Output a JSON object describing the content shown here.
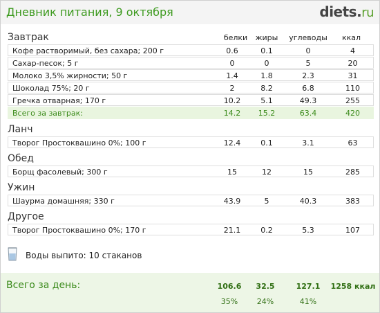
{
  "header": {
    "title": "Дневник питания, 9 октября",
    "logo_main": "diets",
    "logo_dot": ".",
    "logo_tld": "ru"
  },
  "columns": {
    "protein": "белки",
    "fat": "жиры",
    "carbs": "углеводы",
    "kcal": "ккал"
  },
  "sections": [
    {
      "title": "Завтрак",
      "items": [
        {
          "name": "Кофе растворимый, без сахара; 200 г",
          "protein": "0.6",
          "fat": "0.1",
          "carbs": "0",
          "kcal": "4"
        },
        {
          "name": "Сахар-песок; 5 г",
          "protein": "0",
          "fat": "0",
          "carbs": "5",
          "kcal": "20"
        },
        {
          "name": "Молоко 3,5% жирности; 50 г",
          "protein": "1.4",
          "fat": "1.8",
          "carbs": "2.3",
          "kcal": "31"
        },
        {
          "name": "Шоколад 75%; 20 г",
          "protein": "2",
          "fat": "8.2",
          "carbs": "6.8",
          "kcal": "110"
        },
        {
          "name": "Гречка отварная; 170 г",
          "protein": "10.2",
          "fat": "5.1",
          "carbs": "49.3",
          "kcal": "255"
        }
      ],
      "total": {
        "name": "Всего за завтрак:",
        "protein": "14.2",
        "fat": "15.2",
        "carbs": "63.4",
        "kcal": "420"
      }
    },
    {
      "title": "Ланч",
      "items": [
        {
          "name": "Творог Простоквашино 0%; 100 г",
          "protein": "12.4",
          "fat": "0.1",
          "carbs": "3.1",
          "kcal": "63"
        }
      ]
    },
    {
      "title": "Обед",
      "items": [
        {
          "name": "Борщ фасолевый; 300 г",
          "protein": "15",
          "fat": "12",
          "carbs": "15",
          "kcal": "285"
        }
      ]
    },
    {
      "title": "Ужин",
      "items": [
        {
          "name": "Шаурма домашняя; 330 г",
          "protein": "43.9",
          "fat": "5",
          "carbs": "40.3",
          "kcal": "383"
        }
      ]
    },
    {
      "title": "Другое",
      "items": [
        {
          "name": "Творог Простоквашино 0%; 170 г",
          "protein": "21.1",
          "fat": "0.2",
          "carbs": "5.3",
          "kcal": "107"
        }
      ]
    }
  ],
  "water": {
    "icon": "water-glass-icon",
    "text": "Воды выпито: 10 стаканов"
  },
  "day_total": {
    "label": "Всего за день:",
    "protein": "106.6",
    "fat": "32.5",
    "carbs": "127.1",
    "kcal": "1258 ккал",
    "protein_pct": "35%",
    "fat_pct": "24%",
    "carbs_pct": "41%"
  },
  "colors": {
    "accent_green": "#3d9a1f",
    "total_row_bg": "#e9f5df",
    "day_total_bg": "#edf6e6"
  }
}
